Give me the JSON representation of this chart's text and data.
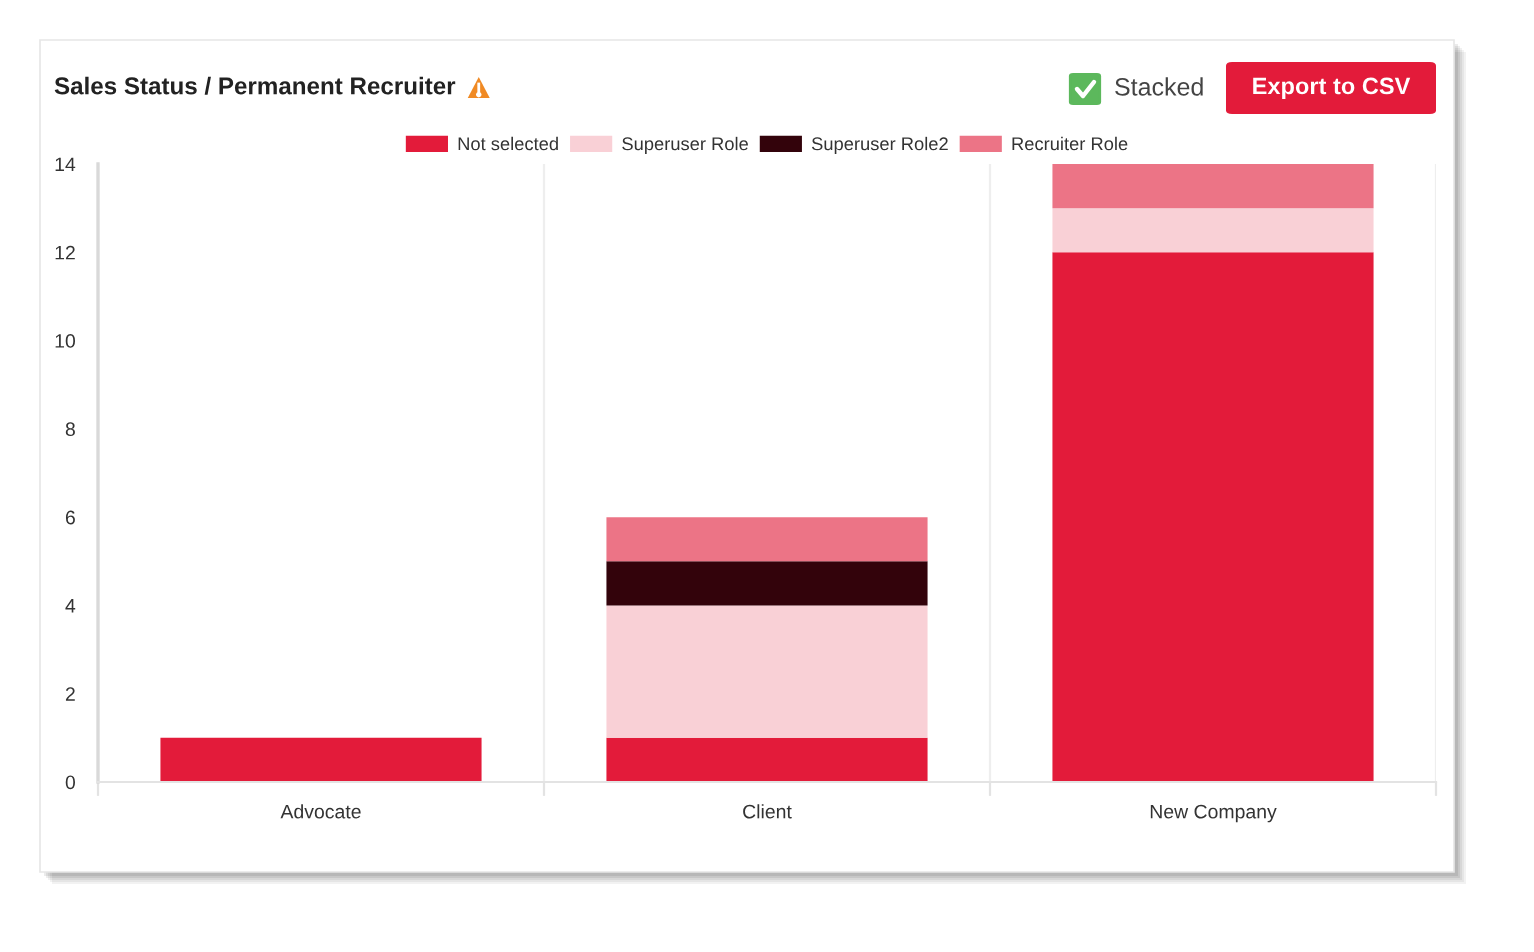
{
  "chart_data": {
    "type": "bar",
    "title": "Sales Status / Permanent Recruiter",
    "categories": [
      "Advocate",
      "Client",
      "New Company"
    ],
    "series": [
      {
        "name": "Not selected",
        "color": "#e31b3a",
        "values": [
          1,
          1,
          12
        ]
      },
      {
        "name": "Superuser Role",
        "color": "#f9d0d6",
        "values": [
          null,
          3,
          1
        ]
      },
      {
        "name": "Superuser Role2",
        "color": "#33030b",
        "values": [
          null,
          1,
          null
        ]
      },
      {
        "name": "Recruiter Role",
        "color": "#ec7486",
        "values": [
          null,
          1,
          1
        ]
      }
    ],
    "stacked": true,
    "ylim": [
      0,
      14
    ],
    "yticks": [
      0,
      2,
      4,
      6,
      8,
      10,
      12,
      14
    ],
    "grid": "x",
    "legend": "top",
    "annotations": [
      "Stacked",
      "Export to CSV"
    ]
  }
}
